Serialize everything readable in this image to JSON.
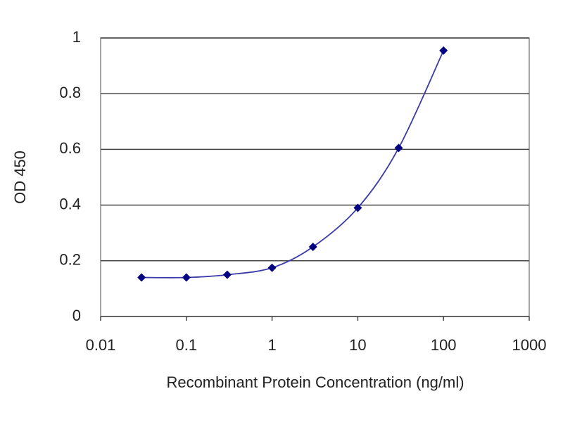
{
  "chart_data": {
    "type": "line",
    "x_label": "Recombinant Protein Concentration (ng/ml)",
    "y_label": "OD 450",
    "x": [
      0.03,
      0.1,
      0.3,
      1,
      3,
      10,
      30,
      100
    ],
    "values": [
      0.14,
      0.14,
      0.15,
      0.175,
      0.25,
      0.39,
      0.605,
      0.955
    ],
    "color": "#000080",
    "line_color": "#3a3aa8",
    "xscale": "log",
    "xlim": [
      0.01,
      1000
    ],
    "xticks": [
      0.01,
      0.1,
      1,
      10,
      100,
      1000
    ],
    "ylim": [
      0,
      1
    ],
    "yticks": [
      0,
      0.2,
      0.4,
      0.6,
      0.8,
      1
    ],
    "grid": true
  }
}
